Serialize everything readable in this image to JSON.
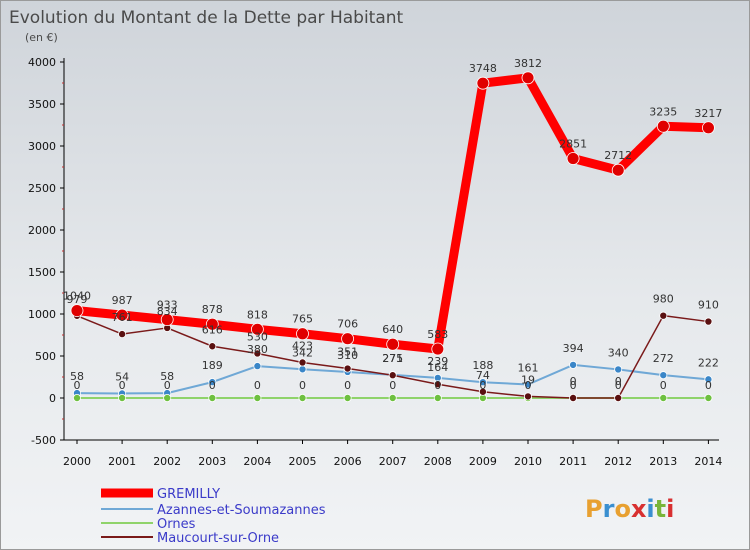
{
  "title": "Evolution du Montant de la Dette par Habitant",
  "subtitle": "(en €)",
  "brand": {
    "text": "Proxiti",
    "letters": [
      "P",
      "r",
      "o",
      "x",
      "i",
      "t",
      "i"
    ],
    "colors": [
      "#e8a030",
      "#3a8fd0",
      "#e8a030",
      "#d83030",
      "#3a8fd0",
      "#79b53a",
      "#d83030"
    ]
  },
  "chart_data": {
    "type": "line",
    "title": "Evolution du Montant de la Dette par Habitant",
    "subtitle": "(en €)",
    "x": [
      "2000",
      "2001",
      "2002",
      "2003",
      "2004",
      "2005",
      "2006",
      "2007",
      "2008",
      "2009",
      "2010",
      "2011",
      "2012",
      "2013",
      "2014"
    ],
    "ylim": [
      -500,
      4000
    ],
    "yticks": [
      -500,
      0,
      500,
      1000,
      1500,
      2000,
      2500,
      3000,
      3500,
      4000
    ],
    "grid": false,
    "legend": "bottom-left",
    "series": [
      {
        "name": "GREMILLY",
        "color": "#ff0000",
        "marker_color": "#e00000",
        "values": [
          1040,
          987,
          933,
          878,
          818,
          765,
          706,
          640,
          583,
          3748,
          3812,
          2851,
          2712,
          3235,
          3217
        ],
        "labels": [
          "1040",
          "987",
          "933",
          "878",
          "818",
          "765",
          "706",
          "640",
          "583",
          "3748",
          "3812",
          "2851",
          "2712",
          "3235",
          "3217"
        ]
      },
      {
        "name": "Azannes-et-Soumazannes",
        "color": "#6fa8d6",
        "marker_color": "#3a86c8",
        "values": [
          58,
          54,
          58,
          189,
          380,
          342,
          310,
          275,
          239,
          188,
          161,
          394,
          340,
          272,
          222
        ],
        "labels": [
          "58",
          "54",
          "58",
          "189",
          "380",
          "342",
          "310",
          "275",
          "239",
          "188",
          "161",
          "394",
          "340",
          "272",
          "222"
        ]
      },
      {
        "name": "Ornes",
        "color": "#8fd36a",
        "marker_color": "#6ec040",
        "values": [
          0,
          0,
          0,
          0,
          0,
          0,
          0,
          0,
          0,
          0,
          0,
          0,
          0,
          0,
          0
        ],
        "labels": [
          "0",
          "0",
          "0",
          "0",
          "0",
          "0",
          "0",
          "0",
          "0",
          "0",
          "0",
          "0",
          "0",
          "0",
          "0"
        ]
      },
      {
        "name": "Maucourt-sur-Orne",
        "color": "#7a1a1a",
        "marker_color": "#5a1010",
        "values": [
          979,
          761,
          834,
          616,
          530,
          423,
          351,
          271,
          164,
          74,
          19,
          0,
          0,
          980,
          910
        ],
        "labels": [
          "979",
          "761",
          "834",
          "616",
          "530",
          "423",
          "351",
          "271",
          "164",
          "74",
          "19",
          "0",
          "0",
          "980",
          "910"
        ]
      }
    ]
  }
}
